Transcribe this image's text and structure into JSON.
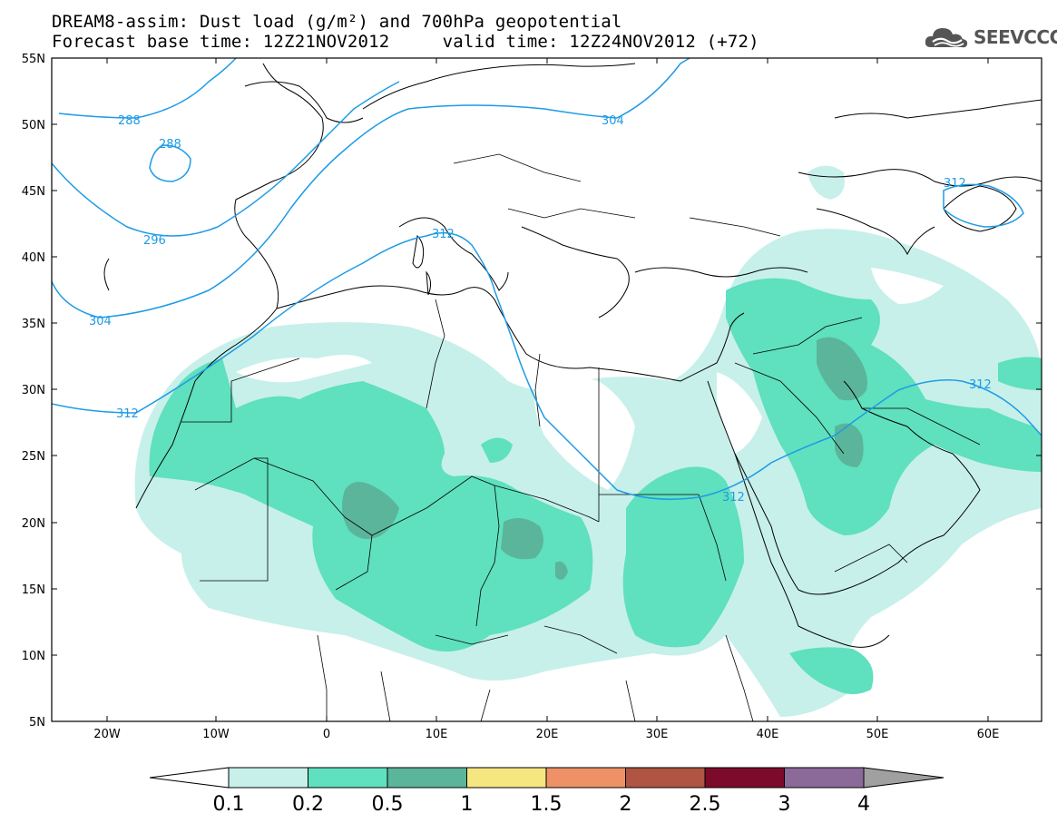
{
  "header": {
    "title_line1": "DREAM8-assim: Dust load (g/m²) and 700hPa geopotential",
    "title_line2": "Forecast base time: 12Z21NOV2012     valid time: 12Z24NOV2012 (+72)",
    "logo_text": "SEEVCCC",
    "logo_icon": "cloud-icon"
  },
  "map": {
    "projection": "lat-lon",
    "lon_range": [
      -25,
      65
    ],
    "lat_range": [
      5,
      55
    ],
    "lat_labels": [
      "55N",
      "50N",
      "45N",
      "40N",
      "35N",
      "30N",
      "25N",
      "20N",
      "15N",
      "10N",
      "5N"
    ],
    "lon_labels": [
      "20W",
      "10W",
      "0",
      "10E",
      "20E",
      "30E",
      "40E",
      "50E",
      "60E"
    ],
    "contour_labels": [
      "288",
      "288",
      "296",
      "304",
      "304",
      "312",
      "312",
      "312",
      "312",
      "312"
    ],
    "contour_color": "#1e9be6",
    "dust_colors": {
      "0.1-0.2": "#c7f0ea",
      "0.2-0.5": "#5fe0be",
      "0.5-1": "#5bb59a",
      "1-1.5": "#f5e680"
    }
  },
  "colorbar": {
    "labels": [
      "0.1",
      "0.2",
      "0.5",
      "1",
      "1.5",
      "2",
      "2.5",
      "3",
      "4"
    ],
    "colors": [
      "#c7f0ea",
      "#5fe0be",
      "#5bb59a",
      "#f5e680",
      "#ee9166",
      "#b05443",
      "#7c0a2a",
      "#8b6a9a"
    ],
    "below_color": "#ffffff",
    "above_color": "#a0a0a0"
  }
}
